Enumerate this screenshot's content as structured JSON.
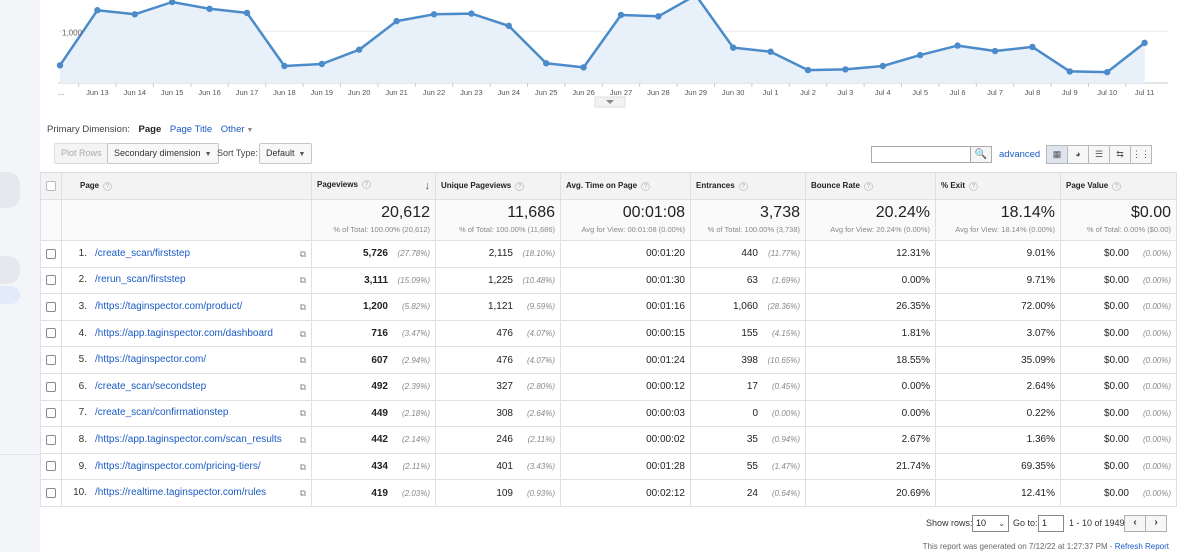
{
  "chart_data": {
    "type": "area",
    "x": [
      "",
      "Jun 13",
      "Jun 14",
      "Jun 15",
      "Jun 16",
      "Jun 17",
      "Jun 18",
      "Jun 19",
      "Jun 20",
      "Jun 21",
      "Jun 22",
      "Jun 23",
      "Jun 24",
      "Jun 25",
      "Jun 26",
      "Jun 27",
      "Jun 28",
      "Jun 29",
      "Jun 30",
      "Jul 1",
      "Jul 2",
      "Jul 3",
      "Jul 4",
      "Jul 5",
      "Jul 6",
      "Jul 7",
      "Jul 8",
      "Jul 9",
      "Jul 10",
      "Jul 11"
    ],
    "x_tick_labels": [
      "...",
      "Jun 13",
      "Jun 14",
      "Jun 15",
      "Jun 16",
      "Jun 17",
      "Jun 18",
      "Jun 19",
      "Jun 20",
      "Jun 21",
      "Jun 22",
      "Jun 23",
      "Jun 24",
      "Jun 25",
      "Jun 26",
      "Jun 27",
      "Jun 28",
      "Jun 29",
      "Jun 30",
      "Jul 1",
      "Jul 2",
      "Jul 3",
      "Jul 4",
      "Jul 5",
      "Jul 6",
      "Jul 7",
      "Jul 8",
      "Jul 9",
      "Jul 10",
      "Jul 11"
    ],
    "series": [
      {
        "values": [
          750,
          1155,
          1125,
          1215,
          1165,
          1135,
          745,
          760,
          865,
          1075,
          1125,
          1130,
          1040,
          765,
          735,
          1120,
          1110,
          1265,
          880,
          850,
          715,
          720,
          745,
          825,
          895,
          855,
          885,
          705,
          700,
          915
        ]
      }
    ],
    "y_tick_labels": [
      "1,000"
    ],
    "y_ticks": [
      1000
    ],
    "ylim": [
      620,
      1230
    ],
    "grid": true,
    "line_color": "#4b8bc9",
    "fill_color": "#e8f0fa"
  },
  "primary_dimension": {
    "label": "Primary Dimension:",
    "selected": "Page",
    "alt": "Page Title",
    "other": "Other"
  },
  "toolbar": {
    "plot_rows": "Plot Rows",
    "secondary_dimension": "Secondary dimension",
    "sort_type_label": "Sort Type:",
    "sort_type_value": "Default",
    "search_placeholder": "",
    "advanced": "advanced"
  },
  "table": {
    "headers": {
      "page": "Page",
      "pageviews": "Pageviews",
      "unique_pageviews": "Unique Pageviews",
      "avg_time": "Avg. Time on Page",
      "entrances": "Entrances",
      "bounce_rate": "Bounce Rate",
      "exit": "% Exit",
      "page_value": "Page Value"
    },
    "totals": {
      "pageviews": "20,612",
      "pageviews_sub": "% of Total: 100.00% (20,612)",
      "unique_pageviews": "11,686",
      "unique_pageviews_sub": "% of Total: 100.00% (11,686)",
      "avg_time": "00:01:08",
      "avg_time_sub": "Avg for View: 00:01:08 (0.00%)",
      "entrances": "3,738",
      "entrances_sub": "% of Total: 100.00% (3,738)",
      "bounce_rate": "20.24%",
      "bounce_rate_sub": "Avg for View: 20.24% (0.00%)",
      "exit": "18.14%",
      "exit_sub": "Avg for View: 18.14% (0.00%)",
      "page_value": "$0.00",
      "page_value_sub": "% of Total: 0.00% ($0.00)"
    },
    "rows": [
      {
        "num": "1.",
        "page": "/create_scan/firststep",
        "pv": "5,726",
        "pv_pct": "(27.78%)",
        "upv": "2,115",
        "upv_pct": "(18.10%)",
        "time": "00:01:20",
        "ent": "440",
        "ent_pct": "(11.77%)",
        "bounce": "12.31%",
        "exit": "9.01%",
        "value": "$0.00",
        "value_pct": "(0.00%)"
      },
      {
        "num": "2.",
        "page": "/rerun_scan/firststep",
        "pv": "3,111",
        "pv_pct": "(15.09%)",
        "upv": "1,225",
        "upv_pct": "(10.48%)",
        "time": "00:01:30",
        "ent": "63",
        "ent_pct": "(1.69%)",
        "bounce": "0.00%",
        "exit": "9.71%",
        "value": "$0.00",
        "value_pct": "(0.00%)"
      },
      {
        "num": "3.",
        "page": "/https://taginspector.com/product/",
        "pv": "1,200",
        "pv_pct": "(5.82%)",
        "upv": "1,121",
        "upv_pct": "(9.59%)",
        "time": "00:01:16",
        "ent": "1,060",
        "ent_pct": "(28.36%)",
        "bounce": "26.35%",
        "exit": "72.00%",
        "value": "$0.00",
        "value_pct": "(0.00%)"
      },
      {
        "num": "4.",
        "page": "/https://app.taginspector.com/dashboard",
        "pv": "716",
        "pv_pct": "(3.47%)",
        "upv": "476",
        "upv_pct": "(4.07%)",
        "time": "00:00:15",
        "ent": "155",
        "ent_pct": "(4.15%)",
        "bounce": "1.81%",
        "exit": "3.07%",
        "value": "$0.00",
        "value_pct": "(0.00%)"
      },
      {
        "num": "5.",
        "page": "/https://taginspector.com/",
        "pv": "607",
        "pv_pct": "(2.94%)",
        "upv": "476",
        "upv_pct": "(4.07%)",
        "time": "00:01:24",
        "ent": "398",
        "ent_pct": "(10.65%)",
        "bounce": "18.55%",
        "exit": "35.09%",
        "value": "$0.00",
        "value_pct": "(0.00%)"
      },
      {
        "num": "6.",
        "page": "/create_scan/secondstep",
        "pv": "492",
        "pv_pct": "(2.39%)",
        "upv": "327",
        "upv_pct": "(2.80%)",
        "time": "00:00:12",
        "ent": "17",
        "ent_pct": "(0.45%)",
        "bounce": "0.00%",
        "exit": "2.64%",
        "value": "$0.00",
        "value_pct": "(0.00%)"
      },
      {
        "num": "7.",
        "page": "/create_scan/confirmationstep",
        "pv": "449",
        "pv_pct": "(2.18%)",
        "upv": "308",
        "upv_pct": "(2.64%)",
        "time": "00:00:03",
        "ent": "0",
        "ent_pct": "(0.00%)",
        "bounce": "0.00%",
        "exit": "0.22%",
        "value": "$0.00",
        "value_pct": "(0.00%)"
      },
      {
        "num": "8.",
        "page": "/https://app.taginspector.com/scan_results",
        "pv": "442",
        "pv_pct": "(2.14%)",
        "upv": "246",
        "upv_pct": "(2.11%)",
        "time": "00:00:02",
        "ent": "35",
        "ent_pct": "(0.94%)",
        "bounce": "2.67%",
        "exit": "1.36%",
        "value": "$0.00",
        "value_pct": "(0.00%)"
      },
      {
        "num": "9.",
        "page": "/https://taginspector.com/pricing-tiers/",
        "pv": "434",
        "pv_pct": "(2.11%)",
        "upv": "401",
        "upv_pct": "(3.43%)",
        "time": "00:01:28",
        "ent": "55",
        "ent_pct": "(1.47%)",
        "bounce": "21.74%",
        "exit": "69.35%",
        "value": "$0.00",
        "value_pct": "(0.00%)"
      },
      {
        "num": "10.",
        "page": "/https://realtime.taginspector.com/rules",
        "pv": "419",
        "pv_pct": "(2.03%)",
        "upv": "109",
        "upv_pct": "(0.93%)",
        "time": "00:02:12",
        "ent": "24",
        "ent_pct": "(0.64%)",
        "bounce": "20.69%",
        "exit": "12.41%",
        "value": "$0.00",
        "value_pct": "(0.00%)"
      }
    ]
  },
  "footer": {
    "show_rows_label": "Show rows:",
    "show_rows_value": "10",
    "goto_label": "Go to:",
    "goto_value": "1",
    "range": "1 - 10 of 1949",
    "generated": "This report was generated on 7/12/22 at 1:27:37 PM - ",
    "refresh": "Refresh Report"
  },
  "icons": {
    "search": "search-icon",
    "prev": "chevron-left-icon",
    "next": "chevron-right-icon",
    "external": "external-link-icon",
    "help": "help-icon",
    "sort": "sort-descending-icon"
  }
}
